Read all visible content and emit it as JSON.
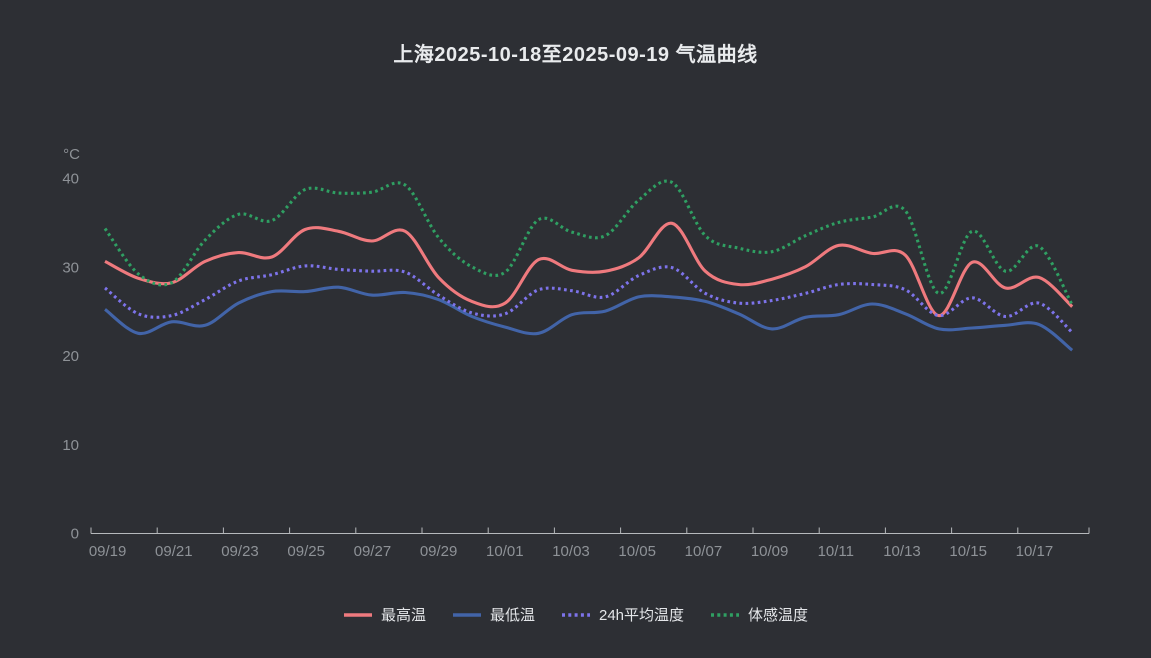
{
  "title": "上海2025-10-18至2025-09-19 气温曲线",
  "y_axis": {
    "unit": "°C",
    "tick_labels": [
      "0",
      "10",
      "20",
      "30",
      "40"
    ],
    "tick_values": [
      0,
      10,
      20,
      30,
      40
    ]
  },
  "x_axis": {
    "tick_labels": [
      "09/19",
      "09/21",
      "09/23",
      "09/25",
      "09/27",
      "09/29",
      "10/01",
      "10/03",
      "10/05",
      "10/07",
      "10/09",
      "10/11",
      "10/13",
      "10/15",
      "10/17"
    ]
  },
  "legend": {
    "items": [
      {
        "label": "最高温",
        "slug": "max-temp",
        "color": "#ef7a7e",
        "style": "solid"
      },
      {
        "label": "最低温",
        "slug": "min-temp",
        "color": "#4264a8",
        "style": "solid"
      },
      {
        "label": "24h平均温度",
        "slug": "avg-temp-24h",
        "color": "#7d73ea",
        "style": "dotted"
      },
      {
        "label": "体感温度",
        "slug": "feels-like",
        "color": "#2f9f62",
        "style": "dotted"
      }
    ]
  },
  "colors": {
    "background": "#2d2f34",
    "title_text": "#e9ebed",
    "axis_line": "#b6b9bc",
    "axis_label": "#8e9297",
    "legend_text": "#e4e6e9",
    "max_temp": "#ef7a7e",
    "min_temp": "#4264a8",
    "avg_temp_24h": "#7d73ea",
    "feels_like": "#2f9f62"
  },
  "chart_data": {
    "type": "line",
    "title": "上海2025-10-18至2025-09-19 气温曲线",
    "ylabel": "°C",
    "ylim": [
      0,
      40
    ],
    "grid": false,
    "legend_position": "bottom",
    "smooth": true,
    "x": [
      "09/19",
      "09/20",
      "09/21",
      "09/22",
      "09/23",
      "09/24",
      "09/25",
      "09/26",
      "09/27",
      "09/28",
      "09/29",
      "09/30",
      "10/01",
      "10/02",
      "10/03",
      "10/04",
      "10/05",
      "10/06",
      "10/07",
      "10/08",
      "10/09",
      "10/10",
      "10/11",
      "10/12",
      "10/13",
      "10/14",
      "10/15",
      "10/16",
      "10/17",
      "10/18"
    ],
    "series": [
      {
        "name": "最高温",
        "slug": "max-temp",
        "color": "#ef7a7e",
        "style": "solid",
        "values": [
          30.6,
          28.7,
          28.2,
          30.6,
          31.6,
          31.1,
          34.2,
          34.0,
          32.9,
          34.0,
          28.8,
          26.1,
          25.9,
          30.8,
          29.6,
          29.5,
          31.0,
          34.9,
          29.5,
          28.0,
          28.6,
          30.0,
          32.4,
          31.5,
          31.3,
          24.5,
          30.5,
          27.6,
          28.8,
          25.5
        ]
      },
      {
        "name": "最低温",
        "slug": "min-temp",
        "color": "#4264a8",
        "style": "solid",
        "values": [
          25.2,
          22.5,
          23.8,
          23.4,
          25.9,
          27.2,
          27.2,
          27.7,
          26.8,
          27.1,
          26.3,
          24.4,
          23.2,
          22.5,
          24.6,
          25.0,
          26.6,
          26.6,
          26.1,
          24.7,
          23.0,
          24.3,
          24.6,
          25.8,
          24.7,
          23.0,
          23.1,
          23.4,
          23.5,
          20.6
        ]
      },
      {
        "name": "24h平均温度",
        "slug": "avg-temp-24h",
        "color": "#7d73ea",
        "style": "dotted",
        "values": [
          27.6,
          24.7,
          24.5,
          26.3,
          28.4,
          29.1,
          30.1,
          29.7,
          29.5,
          29.4,
          26.8,
          24.8,
          24.7,
          27.4,
          27.3,
          26.6,
          29.0,
          29.9,
          27.0,
          25.9,
          26.2,
          27.0,
          28.0,
          28.0,
          27.4,
          24.5,
          26.5,
          24.4,
          25.9,
          22.6
        ]
      },
      {
        "name": "体感温度",
        "slug": "feels-like",
        "color": "#2f9f62",
        "style": "dotted",
        "values": [
          34.3,
          29.2,
          28.2,
          33.0,
          35.9,
          35.2,
          38.7,
          38.3,
          38.4,
          39.2,
          33.3,
          30.0,
          29.4,
          35.3,
          33.9,
          33.5,
          37.5,
          39.5,
          33.5,
          32.1,
          31.7,
          33.5,
          35.0,
          35.6,
          36.3,
          27.0,
          34.0,
          29.5,
          32.3,
          25.7
        ]
      }
    ]
  }
}
